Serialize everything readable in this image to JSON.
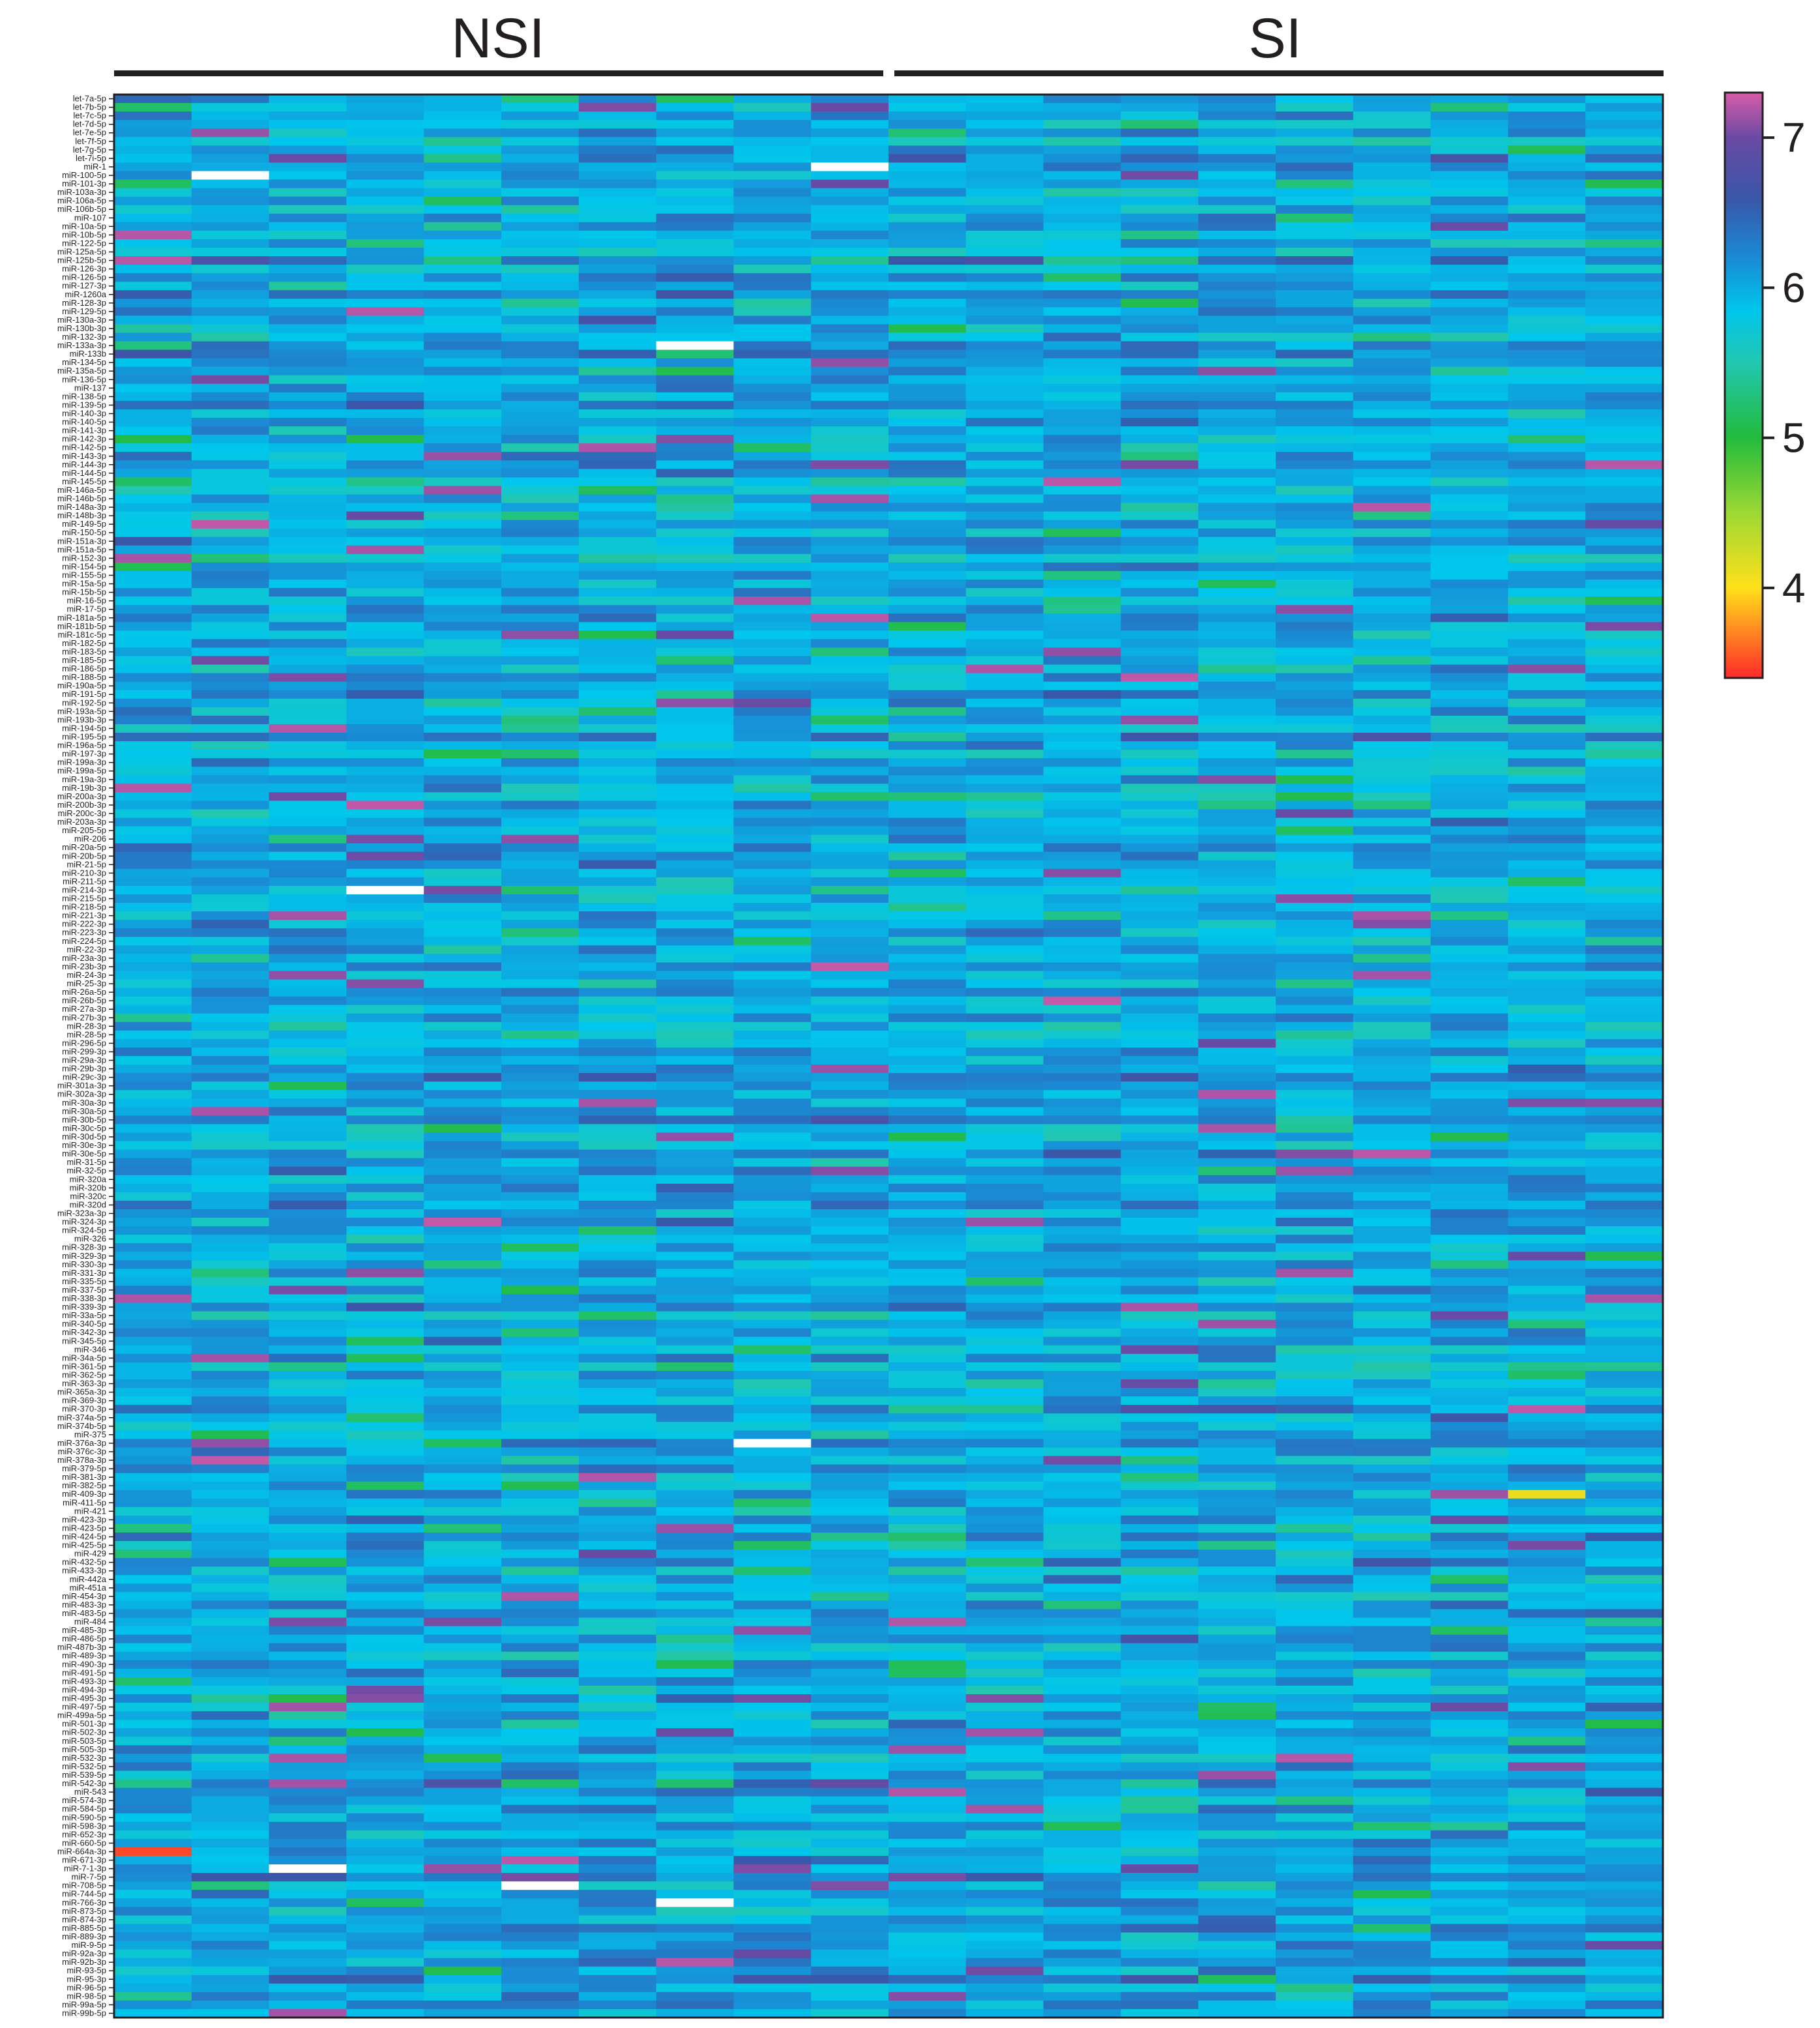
{
  "chart_data": {
    "type": "heatmap",
    "groups": [
      {
        "label": "NSI",
        "columns": 10
      },
      {
        "label": "SI",
        "columns": 10
      }
    ],
    "columns": 20,
    "row_labels": [
      "let-7a-5p",
      "let-7b-5p",
      "let-7c-5p",
      "let-7d-5p",
      "let-7e-5p",
      "let-7f-5p",
      "let-7g-5p",
      "let-7i-5p",
      "miR-1",
      "miR-100-5p",
      "miR-101-3p",
      "miR-103a-3p",
      "miR-106a-5p",
      "miR-106b-5p",
      "miR-107",
      "miR-10a-5p",
      "miR-10b-5p",
      "miR-122-5p",
      "miR-125a-5p",
      "miR-125b-5p",
      "miR-126-3p",
      "miR-126-5p",
      "miR-127-3p",
      "miR-1260a",
      "miR-128-3p",
      "miR-129-5p",
      "miR-130a-3p",
      "miR-130b-3p",
      "miR-132-3p",
      "miR-133a-3p",
      "miR-133b",
      "miR-134-5p",
      "miR-135a-5p",
      "miR-136-5p",
      "miR-137",
      "miR-138-5p",
      "miR-139-5p",
      "miR-140-3p",
      "miR-140-5p",
      "miR-141-3p",
      "miR-142-3p",
      "miR-142-5p",
      "miR-143-3p",
      "miR-144-3p",
      "miR-144-5p",
      "miR-145-5p",
      "miR-146a-5p",
      "miR-146b-5p",
      "miR-148a-3p",
      "miR-148b-3p",
      "miR-149-5p",
      "miR-150-5p",
      "miR-151a-3p",
      "miR-151a-5p",
      "miR-152-3p",
      "miR-154-5p",
      "miR-155-5p",
      "miR-15a-5p",
      "miR-15b-5p",
      "miR-16-5p",
      "miR-17-5p",
      "miR-181a-5p",
      "miR-181b-5p",
      "miR-181c-5p",
      "miR-182-5p",
      "miR-183-5p",
      "miR-185-5p",
      "miR-186-5p",
      "miR-188-5p",
      "miR-190a-5p",
      "miR-191-5p",
      "miR-192-5p",
      "miR-193a-5p",
      "miR-193b-3p",
      "miR-194-5p",
      "miR-195-5p",
      "miR-196a-5p",
      "miR-197-3p",
      "miR-199a-3p",
      "miR-199a-5p",
      "miR-19a-3p",
      "miR-19b-3p",
      "miR-200a-3p",
      "miR-200b-3p",
      "miR-200c-3p",
      "miR-203a-3p",
      "miR-205-5p",
      "miR-206",
      "miR-20a-5p",
      "miR-20b-5p",
      "miR-21-5p",
      "miR-210-3p",
      "miR-211-5p",
      "miR-214-3p",
      "miR-215-5p",
      "miR-218-5p",
      "miR-221-3p",
      "miR-222-3p",
      "miR-223-3p",
      "miR-224-5p",
      "miR-22-3p",
      "miR-23a-3p",
      "miR-23b-3p",
      "miR-24-3p",
      "miR-25-3p",
      "miR-26a-5p",
      "miR-26b-5p",
      "miR-27a-3p",
      "miR-27b-3p",
      "miR-28-3p",
      "miR-28-5p",
      "miR-296-5p",
      "miR-299-3p",
      "miR-29a-3p",
      "miR-29b-3p",
      "miR-29c-3p",
      "miR-301a-3p",
      "miR-302a-3p",
      "miR-30a-3p",
      "miR-30a-5p",
      "miR-30b-5p",
      "miR-30c-5p",
      "miR-30d-5p",
      "miR-30e-3p",
      "miR-30e-5p",
      "miR-31-5p",
      "miR-32-5p",
      "miR-320a",
      "miR-320b",
      "miR-320c",
      "miR-320d",
      "miR-323a-3p",
      "miR-324-3p",
      "miR-324-5p",
      "miR-326",
      "miR-328-3p",
      "miR-329-3p",
      "miR-330-3p",
      "miR-331-3p",
      "miR-335-5p",
      "miR-337-5p",
      "miR-338-3p",
      "miR-339-3p",
      "miR-33a-5p",
      "miR-340-5p",
      "miR-342-3p",
      "miR-345-5p",
      "miR-346",
      "miR-34a-5p",
      "miR-361-5p",
      "miR-362-5p",
      "miR-363-3p",
      "miR-365a-3p",
      "miR-369-3p",
      "miR-370-3p",
      "miR-374a-5p",
      "miR-374b-5p",
      "miR-375",
      "miR-376a-3p",
      "miR-376c-3p",
      "miR-378a-3p",
      "miR-379-5p",
      "miR-381-3p",
      "miR-382-5p",
      "miR-409-3p",
      "miR-411-5p",
      "miR-421",
      "miR-423-3p",
      "miR-423-5p",
      "miR-424-5p",
      "miR-425-5p",
      "miR-429",
      "miR-432-5p",
      "miR-433-3p",
      "miR-442a",
      "miR-451a",
      "miR-454-3p",
      "miR-483-3p",
      "miR-483-5p",
      "miR-484",
      "miR-485-3p",
      "miR-486-5p",
      "miR-487b-3p",
      "miR-489-3p",
      "miR-490-3p",
      "miR-491-5p",
      "miR-493-3p",
      "miR-494-3p",
      "miR-495-3p",
      "miR-497-5p",
      "miR-499a-5p",
      "miR-501-3p",
      "miR-502-3p",
      "miR-503-5p",
      "miR-505-3p",
      "miR-532-3p",
      "miR-532-5p",
      "miR-539-5p",
      "miR-542-3p",
      "miR-543",
      "miR-574-3p",
      "miR-584-5p",
      "miR-590-5p",
      "miR-598-3p",
      "miR-652-3p",
      "miR-660-5p",
      "miR-664a-3p",
      "miR-671-3p",
      "miR-7-1-3p",
      "miR-7-5p",
      "miR-708-5p",
      "miR-744-5p",
      "miR-766-3p",
      "miR-873-5p",
      "miR-874-3p",
      "miR-885-5p",
      "miR-889-3p",
      "miR-9-5p",
      "miR-92a-3p",
      "miR-92b-3p",
      "miR-93-5p",
      "miR-95-3p",
      "miR-96-5p",
      "miR-98-5p",
      "miR-99a-5p",
      "miR-99b-5p"
    ],
    "colorbar": {
      "ticks": [
        7,
        6,
        5,
        4
      ],
      "range": [
        3.4,
        7.3
      ],
      "stops": [
        {
          "v": 3.4,
          "c": "#ff2a2a"
        },
        {
          "v": 4.0,
          "c": "#ffe01a"
        },
        {
          "v": 4.5,
          "c": "#9dd834"
        },
        {
          "v": 5.0,
          "c": "#22bb3c"
        },
        {
          "v": 5.5,
          "c": "#22c7b0"
        },
        {
          "v": 5.85,
          "c": "#00c6ec"
        },
        {
          "v": 6.2,
          "c": "#1a8ad4"
        },
        {
          "v": 6.6,
          "c": "#3a56a8"
        },
        {
          "v": 7.0,
          "c": "#6a4aa4"
        },
        {
          "v": 7.3,
          "c": "#d85ca8"
        }
      ]
    },
    "missing_cells": [
      {
        "row": 9,
        "col": 1
      },
      {
        "row": 8,
        "col": 9
      },
      {
        "row": 29,
        "col": 7
      },
      {
        "row": 93,
        "col": 3
      },
      {
        "row": 158,
        "col": 8
      },
      {
        "row": 208,
        "col": 2
      },
      {
        "row": 210,
        "col": 5
      },
      {
        "row": 212,
        "col": 7
      }
    ],
    "notable_cells": [
      {
        "row": 206,
        "col": 0,
        "value": 3.5
      },
      {
        "row": 164,
        "col": 18,
        "value": 4.1
      }
    ],
    "value_model": "cells vary 5.0–7.3 around a mean near 6.0"
  }
}
